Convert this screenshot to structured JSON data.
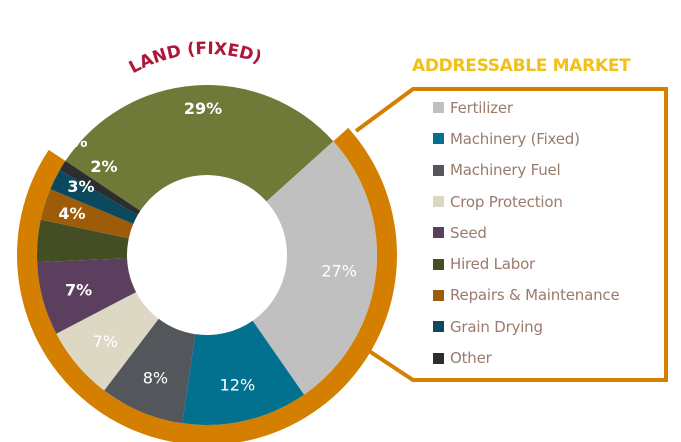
{
  "chart_data": {
    "type": "pie",
    "subtype": "donut",
    "title": "",
    "annotations": {
      "top_label": "LAND (FIXED)",
      "bracket_label": "ADDRESSABLE MARKET"
    },
    "categories": [
      "Land (Fixed)",
      "Fertilizer",
      "Machinery (Fixed)",
      "Machinery Fuel",
      "Crop Protection",
      "Seed",
      "Hired Labor",
      "Repairs & Maintenance",
      "Grain Drying",
      "Other"
    ],
    "values": [
      29,
      27,
      12,
      8,
      7,
      7,
      4,
      3,
      2,
      1
    ],
    "labels": [
      "29%",
      "27%",
      "12%",
      "8%",
      "7%",
      "7%",
      "4%",
      "3%",
      "2%",
      "1%"
    ],
    "colors": [
      "#6f7a39",
      "#c0c0c0",
      "#02708f",
      "#53575b",
      "#ddd8c3",
      "#5c3f5e",
      "#434e24",
      "#9e5c09",
      "#0b4a5e",
      "#2b2d2f"
    ],
    "legend_position": "right",
    "legend_covers": "addressable market segments (all except Land)"
  },
  "labels": {
    "land": "LAND (FIXED)",
    "addressable": "ADDRESSABLE MARKET"
  },
  "legend": [
    {
      "label": "Fertilizer",
      "color": "#c0c0c0"
    },
    {
      "label": "Machinery (Fixed)",
      "color": "#02708f"
    },
    {
      "label": "Machinery Fuel",
      "color": "#53575b"
    },
    {
      "label": "Crop Protection",
      "color": "#ddd8c3"
    },
    {
      "label": "Seed",
      "color": "#5c3f5e"
    },
    {
      "label": "Hired Labor",
      "color": "#434e24"
    },
    {
      "label": "Repairs & Maintenance",
      "color": "#9e5c09"
    },
    {
      "label": "Grain Drying",
      "color": "#0b4a5e"
    },
    {
      "label": "Other",
      "color": "#2b2d2f"
    }
  ],
  "colors": {
    "accent_orange": "#d47f00",
    "land_label": "#b0163a",
    "market_title": "#f2c01a"
  }
}
